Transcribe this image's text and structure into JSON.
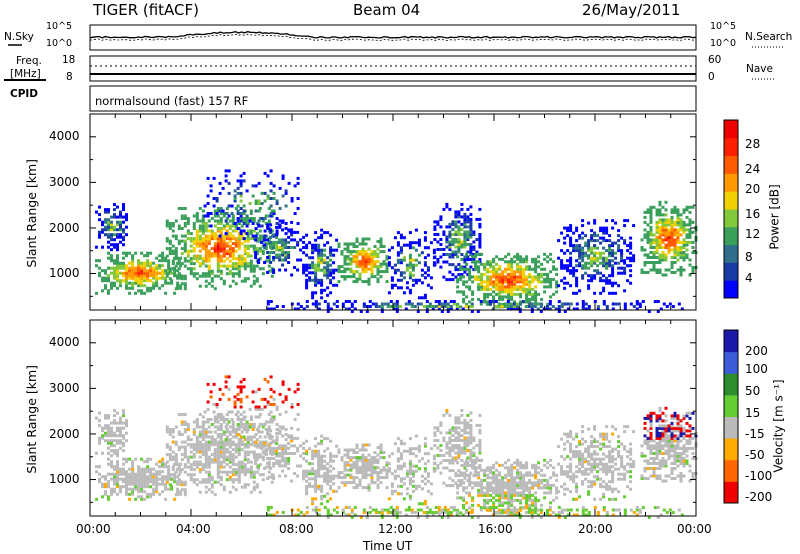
{
  "header": {
    "radar": "TIGER (fitACF)",
    "beam": "Beam 04",
    "date": "26/May/2011"
  },
  "top_panels": {
    "nsky_label": "N.Sky",
    "nsky_ticks": [
      "10^5",
      "10^0"
    ],
    "nsearch_label": "N.Search",
    "nsearch_ticks": [
      "10^5",
      "10^0"
    ],
    "freq_label_1": "Freq.",
    "freq_label_2": "[MHz]",
    "freq_ticks": [
      "18",
      "8"
    ],
    "nave_label": "Nave",
    "nave_ticks": [
      "60",
      "0"
    ],
    "cpid_label": "CPID",
    "cpid_text": "normalsound (fast) 157 RF"
  },
  "chart_data": [
    {
      "type": "heatmap",
      "name": "power-panel",
      "ylabel": "Slant Range [km]",
      "ylim": [
        200,
        4500
      ],
      "yticks": [
        "4000",
        "3000",
        "2000",
        "1000"
      ],
      "xlim_hours": [
        0,
        24
      ],
      "colorbar": {
        "label": "Power [dB]",
        "ticks": [
          "28",
          "24",
          "20",
          "16",
          "12",
          "8",
          "4"
        ],
        "colors": [
          "#0000ff",
          "#1a3aa8",
          "#2f6e8c",
          "#3a9f5a",
          "#82c83a",
          "#f0d000",
          "#ff9900",
          "#ff5a00",
          "#ff2000",
          "#ee0000"
        ]
      }
    },
    {
      "type": "heatmap",
      "name": "velocity-panel",
      "ylabel": "Slant Range [km]",
      "ylim": [
        200,
        4500
      ],
      "yticks": [
        "4000",
        "3000",
        "2000",
        "1000"
      ],
      "xlim_hours": [
        0,
        24
      ],
      "colorbar": {
        "label": "Velocity [m s⁻¹]",
        "ticks": [
          "200",
          "100",
          "50",
          "15",
          "-15",
          "-50",
          "-100",
          "-200"
        ],
        "colors": [
          "#1a1aa8",
          "#3c5cd8",
          "#2e8b2e",
          "#66cc33",
          "#bbbbbb",
          "#ffaa00",
          "#ff6600",
          "#ee0000"
        ]
      }
    }
  ],
  "xaxis": {
    "label": "Time UT",
    "ticks": [
      "00:00",
      "04:00",
      "08:00",
      "12:00",
      "16:00",
      "20:00",
      "00:00"
    ]
  }
}
